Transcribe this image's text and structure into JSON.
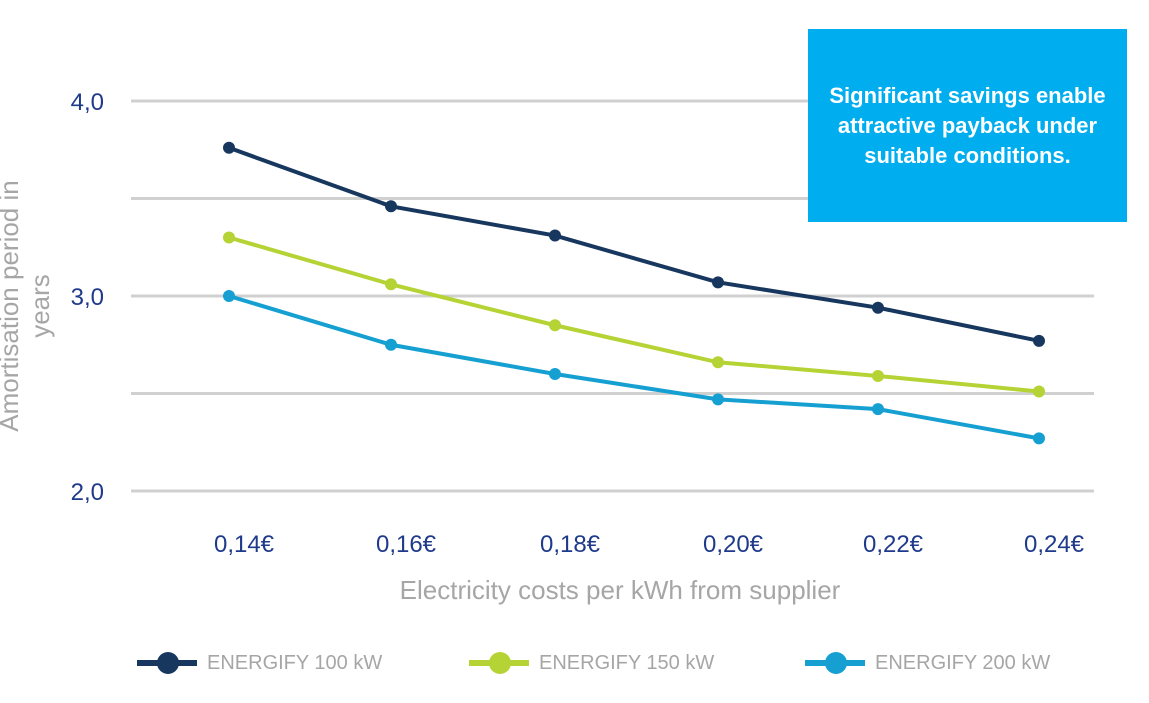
{
  "chart_data": {
    "type": "line",
    "title": "",
    "xlabel": "Electricity costs per kWh from supplier",
    "ylabel": "Amortisation period in years",
    "categories": [
      "0,14€",
      "0,16€",
      "0,18€",
      "0,20€",
      "0,22€",
      "0,24€"
    ],
    "ylim": [
      2.0,
      4.0
    ],
    "yticks": [
      2.0,
      2.5,
      3.0,
      3.5,
      4.0
    ],
    "ytick_labels": [
      "2,0",
      "",
      "3,0",
      "",
      "4,0"
    ],
    "grid": true,
    "legend_position": "bottom",
    "series": [
      {
        "name": "ENERGIFY 100 kW",
        "color": "#17375e",
        "values": [
          3.76,
          3.46,
          3.31,
          3.07,
          2.94,
          2.77
        ]
      },
      {
        "name": "ENERGIFY 150 kW",
        "color": "#b5d334",
        "values": [
          3.3,
          3.06,
          2.85,
          2.66,
          2.59,
          2.51
        ]
      },
      {
        "name": "ENERGIFY 200 kW",
        "color": "#16a0d2",
        "values": [
          3.0,
          2.75,
          2.6,
          2.47,
          2.42,
          2.27
        ]
      }
    ],
    "annotation": "Significant savings enable attractive payback under suitable conditions."
  }
}
